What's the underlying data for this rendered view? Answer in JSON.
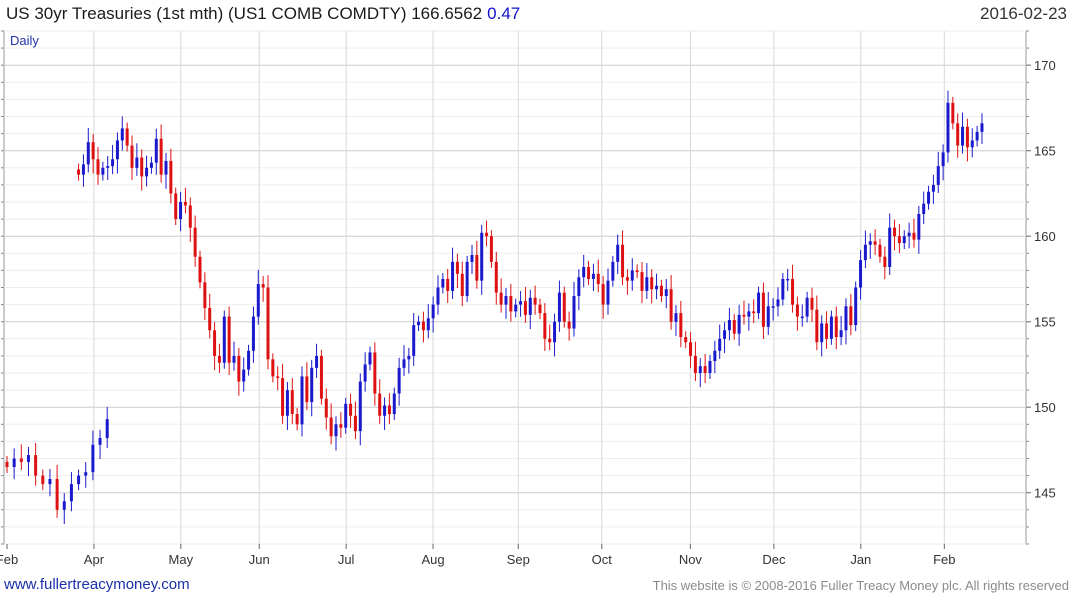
{
  "header": {
    "title": "US 30yr Treasuries (1st mth) (US1 COMB COMDTY) 166.6562",
    "change": "0.47",
    "date": "2016-02-23"
  },
  "footer": {
    "left": "www.fullertreacymoney.com",
    "right": "This website is © 2008-2016 Fuller Treacy Money plc. All rights reserved"
  },
  "colors": {
    "up": "#1a1acc",
    "down": "#dd1111",
    "grid": "#d8d8d8",
    "text": "#333333"
  },
  "chart_data": {
    "type": "candlestick",
    "title": "US 30yr Treasuries (1st mth) (US1 COMB COMDTY)",
    "period_label": "Daily",
    "ylim": [
      142,
      172
    ],
    "y_ticks": [
      145,
      150,
      155,
      160,
      165,
      170
    ],
    "month_labels": [
      "Feb",
      "Apr",
      "May",
      "Jun",
      "Jul",
      "Aug",
      "Sep",
      "Oct",
      "Nov",
      "Dec",
      "Jan",
      "Feb"
    ],
    "month_positions": [
      0,
      51,
      102,
      148,
      199,
      250,
      300,
      349,
      401,
      450,
      501,
      550
    ],
    "x_max": 595,
    "series": [
      {
        "name": "segment1",
        "start": 0,
        "step": 4.2,
        "closes": [
          146.5,
          147.0,
          146.8,
          147.2,
          146.0,
          145.5,
          145.8,
          144.0,
          144.5,
          145.5,
          146.0,
          146.2,
          147.8,
          148.2,
          149.3
        ]
      },
      {
        "name": "segment2",
        "start": 42,
        "step": 2.85,
        "closes": [
          163.6,
          164.2,
          165.5,
          164.5,
          163.6,
          164.0,
          164.1,
          164.5,
          165.6,
          166.3,
          165.3,
          164.0,
          164.6,
          163.5,
          164.0,
          164.3,
          165.7,
          163.6,
          164.4,
          162.5,
          161.0,
          162.0,
          161.8,
          160.5,
          158.8,
          157.3,
          155.8,
          154.5,
          153.0,
          152.6,
          155.3,
          152.6,
          153.0,
          151.5,
          152.2,
          153.3,
          155.3,
          157.2,
          157.0,
          152.8,
          151.8,
          151.7,
          149.5,
          151.0,
          149.6,
          149.0,
          151.8,
          150.3,
          152.3,
          153.0,
          150.5,
          149.4,
          148.3,
          149.0,
          148.8,
          150.2,
          149.5,
          148.6,
          151.5,
          152.5,
          153.2,
          150.8,
          149.5,
          150.1,
          149.6,
          150.8,
          152.3,
          152.8,
          153.0,
          154.8,
          155.0,
          154.5,
          155.2,
          156.0,
          157.0,
          157.5,
          156.8,
          158.5,
          157.8,
          156.5,
          158.5,
          158.9,
          157.4,
          160.2,
          160.0,
          158.5,
          156.7,
          156.0,
          156.5,
          155.6,
          156.0,
          156.2,
          155.4,
          156.4,
          156.0,
          155.5,
          154.0,
          153.8,
          155.0,
          156.7,
          155.0,
          154.6,
          156.5,
          157.6,
          158.2,
          157.5,
          157.8,
          157.2,
          156.0,
          157.4,
          158.5,
          159.5,
          157.6,
          157.4,
          158.0,
          157.9,
          156.8,
          157.6,
          156.9,
          157.1,
          156.5,
          156.9,
          155.0,
          155.5,
          154.1,
          153.8,
          153.0,
          152.0,
          152.4,
          152.0,
          152.7,
          153.3,
          154.0,
          154.5,
          155.1,
          154.3,
          155.4,
          155.3,
          155.6,
          155.5,
          156.7,
          154.7,
          155.9,
          155.9,
          156.3,
          157.5,
          157.5,
          156.0,
          155.3,
          155.3,
          156.4,
          155.7,
          153.8,
          154.9,
          154.0,
          155.3,
          154.1,
          154.5,
          155.9,
          154.8,
          157.0,
          158.6,
          159.5,
          159.7,
          159.5,
          158.8,
          158.2,
          160.5,
          160.0,
          159.6,
          160.0,
          160.2,
          159.8,
          161.3,
          161.9,
          162.6,
          163.0,
          164.1,
          164.9,
          167.8,
          166.6,
          165.3,
          166.4,
          165.2,
          165.6,
          166.1,
          166.6
        ]
      }
    ]
  }
}
